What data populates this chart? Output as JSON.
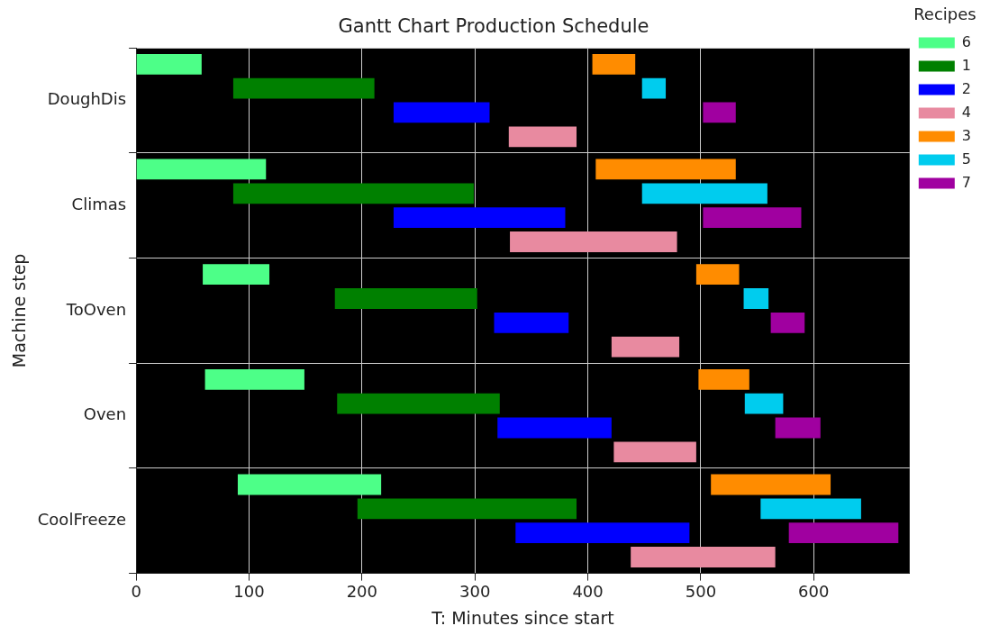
{
  "chart_data": {
    "type": "bar",
    "orientation": "horizontal",
    "title": "Gantt Chart Production Schedule",
    "xlabel": "T: Minutes since start",
    "ylabel": "Machine step",
    "legend_title": "Recipes",
    "legend": "right",
    "grid": true,
    "xlim": [
      0,
      685
    ],
    "xticks": [
      0,
      100,
      200,
      300,
      400,
      500,
      600
    ],
    "categories": [
      "DoughDis",
      "Climas",
      "ToOven",
      "Oven",
      "CoolFreeze"
    ],
    "series": [
      {
        "name": "6",
        "color": "#4dff88",
        "base": [
          0,
          0,
          59,
          61,
          90
        ],
        "values": [
          58,
          115,
          59,
          88,
          127
        ]
      },
      {
        "name": "1",
        "color": "#008000",
        "base": [
          86,
          86,
          176,
          178,
          196
        ],
        "values": [
          125,
          213,
          126,
          144,
          194
        ]
      },
      {
        "name": "2",
        "color": "#0000ff",
        "base": [
          228,
          228,
          317,
          320,
          336
        ],
        "values": [
          85,
          152,
          66,
          101,
          154
        ]
      },
      {
        "name": "4",
        "color": "#e88aa0",
        "base": [
          330,
          331,
          421,
          423,
          438
        ],
        "values": [
          60,
          148,
          60,
          73,
          128
        ]
      },
      {
        "name": "3",
        "color": "#ff8c00",
        "base": [
          404,
          407,
          496,
          498,
          509
        ],
        "values": [
          38,
          124,
          38,
          45,
          106
        ]
      },
      {
        "name": "5",
        "color": "#00ccee",
        "base": [
          448,
          448,
          538,
          539,
          553
        ],
        "values": [
          21,
          111,
          22,
          34,
          89
        ]
      },
      {
        "name": "7",
        "color": "#a000a0",
        "base": [
          502,
          502,
          562,
          566,
          578
        ],
        "values": [
          29,
          87,
          30,
          40,
          97
        ]
      }
    ]
  }
}
